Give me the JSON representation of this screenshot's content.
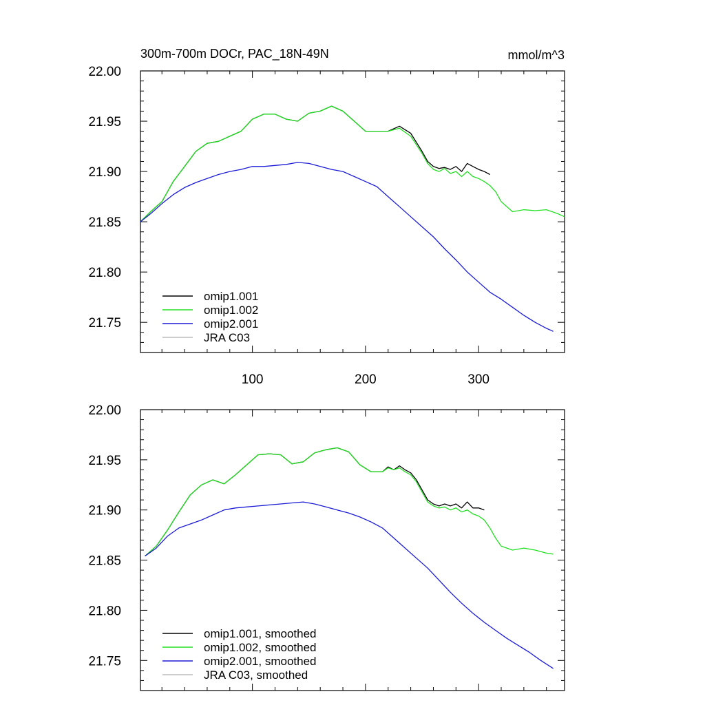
{
  "figure": {
    "title_left": "300m-700m DOCr, PAC_18N-49N",
    "title_right": "mmol/m^3"
  },
  "chart_data": [
    {
      "type": "line",
      "title": "300m-700m DOCr, PAC_18N-49N",
      "units": "mmol/m^3",
      "xlim": [
        1,
        376
      ],
      "ylim": [
        21.72,
        22.0
      ],
      "xticks": [
        100,
        200,
        300
      ],
      "xtick_labels": [
        "100",
        "200",
        "300"
      ],
      "yticks": [
        21.75,
        21.8,
        21.85,
        21.9,
        21.95,
        22.0
      ],
      "ytick_labels": [
        "21.75",
        "21.80",
        "21.85",
        "21.90",
        "21.95",
        "22.00"
      ],
      "legend_location": "bottom-left",
      "series": [
        {
          "name": "omip1.001",
          "color": "#000000",
          "x": [
            1,
            10,
            20,
            30,
            40,
            50,
            60,
            70,
            80,
            90,
            100,
            110,
            120,
            130,
            140,
            150,
            160,
            170,
            180,
            190,
            200,
            210,
            220,
            230,
            240,
            250,
            255,
            260,
            265,
            270,
            275,
            280,
            285,
            290,
            295,
            300,
            305,
            310
          ],
          "y": [
            21.85,
            21.86,
            21.87,
            21.89,
            21.905,
            21.92,
            21.928,
            21.93,
            21.935,
            21.94,
            21.952,
            21.957,
            21.957,
            21.952,
            21.95,
            21.958,
            21.96,
            21.965,
            21.96,
            21.95,
            21.94,
            21.94,
            21.94,
            21.945,
            21.938,
            21.92,
            21.91,
            21.905,
            21.903,
            21.904,
            21.902,
            21.905,
            21.9,
            21.908,
            21.905,
            21.902,
            21.9,
            21.897
          ]
        },
        {
          "name": "omip1.002",
          "color": "#22e022",
          "x": [
            1,
            10,
            20,
            30,
            40,
            50,
            60,
            70,
            80,
            90,
            100,
            110,
            120,
            130,
            140,
            150,
            160,
            170,
            180,
            190,
            200,
            210,
            220,
            230,
            240,
            250,
            255,
            260,
            265,
            270,
            275,
            280,
            285,
            290,
            295,
            300,
            305,
            310,
            315,
            320,
            330,
            340,
            350,
            360,
            370,
            376
          ],
          "y": [
            21.85,
            21.86,
            21.87,
            21.89,
            21.905,
            21.92,
            21.928,
            21.93,
            21.935,
            21.94,
            21.952,
            21.957,
            21.957,
            21.952,
            21.95,
            21.958,
            21.96,
            21.965,
            21.96,
            21.95,
            21.94,
            21.94,
            21.94,
            21.943,
            21.935,
            21.918,
            21.908,
            21.902,
            21.9,
            21.903,
            21.898,
            21.9,
            21.895,
            21.9,
            21.895,
            21.893,
            21.89,
            21.886,
            21.88,
            21.87,
            21.86,
            21.862,
            21.861,
            21.862,
            21.858,
            21.855
          ]
        },
        {
          "name": "omip2.001",
          "color": "#1a1ad6",
          "x": [
            1,
            10,
            20,
            30,
            40,
            50,
            60,
            70,
            80,
            90,
            100,
            110,
            120,
            130,
            140,
            150,
            160,
            170,
            180,
            190,
            200,
            210,
            220,
            230,
            240,
            250,
            260,
            270,
            280,
            290,
            300,
            310,
            320,
            330,
            340,
            350,
            360,
            366
          ],
          "y": [
            21.85,
            21.858,
            21.868,
            21.877,
            21.884,
            21.889,
            21.893,
            21.897,
            21.9,
            21.902,
            21.905,
            21.905,
            21.906,
            21.907,
            21.909,
            21.908,
            21.905,
            21.902,
            21.9,
            21.895,
            21.89,
            21.885,
            21.875,
            21.865,
            21.855,
            21.845,
            21.835,
            21.823,
            21.812,
            21.8,
            21.79,
            21.78,
            21.773,
            21.765,
            21.757,
            21.75,
            21.744,
            21.741
          ]
        },
        {
          "name": "JRA C03",
          "color": "#bbbbbb",
          "x": [],
          "y": []
        }
      ]
    },
    {
      "type": "line",
      "title": "",
      "units": "",
      "xlim": [
        1,
        376
      ],
      "ylim": [
        21.72,
        22.0
      ],
      "xticks": [
        100,
        200,
        300
      ],
      "xtick_labels": [],
      "yticks": [
        21.75,
        21.8,
        21.85,
        21.9,
        21.95,
        22.0
      ],
      "ytick_labels": [
        "21.75",
        "21.80",
        "21.85",
        "21.90",
        "21.95",
        "22.00"
      ],
      "legend_location": "bottom-left",
      "series": [
        {
          "name": "omip1.001, smoothed",
          "color": "#000000",
          "x": [
            5,
            15,
            25,
            35,
            45,
            55,
            65,
            75,
            85,
            95,
            105,
            115,
            125,
            135,
            145,
            155,
            165,
            175,
            185,
            195,
            205,
            215,
            220,
            225,
            230,
            235,
            240,
            245,
            250,
            255,
            260,
            265,
            270,
            275,
            280,
            285,
            290,
            295,
            300,
            305
          ],
          "y": [
            21.854,
            21.864,
            21.88,
            21.898,
            21.915,
            21.925,
            21.93,
            21.926,
            21.935,
            21.945,
            21.955,
            21.956,
            21.955,
            21.946,
            21.948,
            21.957,
            21.96,
            21.962,
            21.958,
            21.945,
            21.938,
            21.938,
            21.943,
            21.94,
            21.944,
            21.94,
            21.937,
            21.93,
            21.92,
            21.91,
            21.906,
            21.904,
            21.906,
            21.904,
            21.906,
            21.902,
            21.908,
            21.902,
            21.902,
            21.9
          ]
        },
        {
          "name": "omip1.002, smoothed",
          "color": "#22e022",
          "x": [
            5,
            15,
            25,
            35,
            45,
            55,
            65,
            75,
            85,
            95,
            105,
            115,
            125,
            135,
            145,
            155,
            165,
            175,
            185,
            195,
            205,
            215,
            220,
            225,
            230,
            235,
            240,
            245,
            250,
            255,
            260,
            265,
            270,
            275,
            280,
            285,
            290,
            295,
            300,
            305,
            310,
            315,
            320,
            330,
            340,
            350,
            360,
            366
          ],
          "y": [
            21.854,
            21.864,
            21.88,
            21.898,
            21.915,
            21.925,
            21.93,
            21.926,
            21.935,
            21.945,
            21.955,
            21.956,
            21.955,
            21.946,
            21.948,
            21.957,
            21.96,
            21.962,
            21.958,
            21.945,
            21.938,
            21.938,
            21.942,
            21.94,
            21.942,
            21.938,
            21.935,
            21.928,
            21.918,
            21.908,
            21.904,
            21.902,
            21.903,
            21.9,
            21.902,
            21.898,
            21.9,
            21.896,
            21.894,
            21.89,
            21.882,
            21.872,
            21.864,
            21.86,
            21.862,
            21.86,
            21.857,
            21.856
          ]
        },
        {
          "name": "omip2.001, smoothed",
          "color": "#1a1ad6",
          "x": [
            5,
            15,
            25,
            35,
            45,
            55,
            65,
            75,
            85,
            95,
            105,
            115,
            125,
            135,
            145,
            155,
            165,
            175,
            185,
            195,
            205,
            215,
            225,
            235,
            245,
            255,
            265,
            275,
            285,
            295,
            305,
            315,
            325,
            335,
            345,
            355,
            366
          ],
          "y": [
            21.854,
            21.862,
            21.874,
            21.882,
            21.886,
            21.89,
            21.895,
            21.9,
            21.902,
            21.903,
            21.904,
            21.905,
            21.906,
            21.907,
            21.908,
            21.906,
            21.903,
            21.9,
            21.897,
            21.893,
            21.888,
            21.882,
            21.872,
            21.862,
            21.852,
            21.842,
            21.83,
            21.818,
            21.807,
            21.797,
            21.788,
            21.78,
            21.772,
            21.765,
            21.758,
            21.75,
            21.742
          ]
        },
        {
          "name": "JRA C03, smoothed",
          "color": "#bbbbbb",
          "x": [],
          "y": []
        }
      ]
    }
  ]
}
